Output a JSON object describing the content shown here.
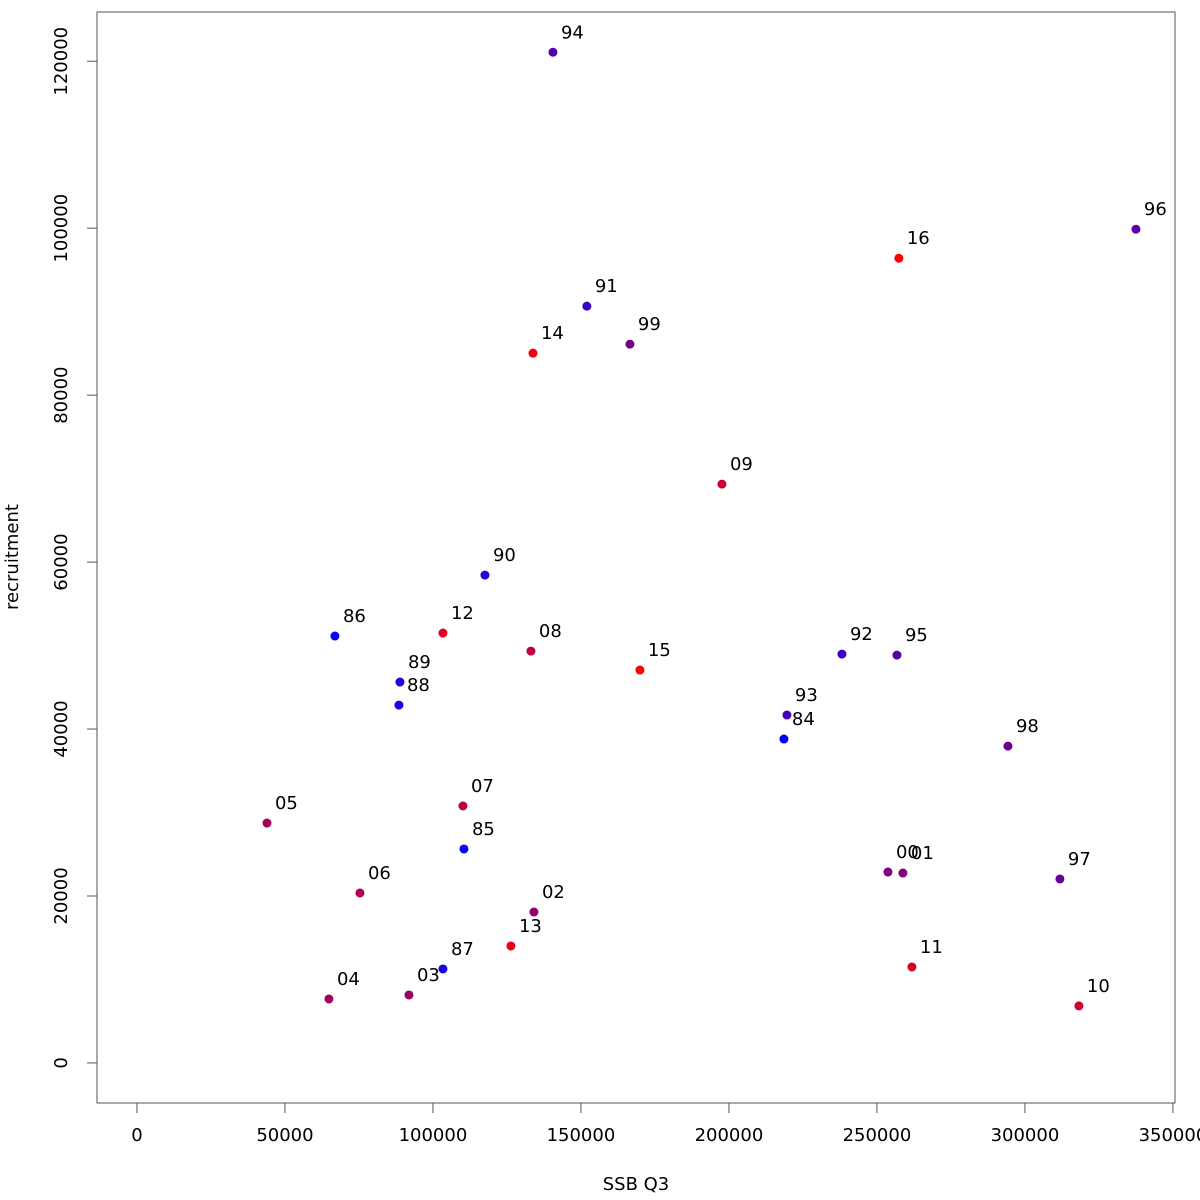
{
  "chart_data": {
    "type": "scatter",
    "xlabel": "SSB Q3",
    "ylabel": "recruitment",
    "xlim": [
      -13500,
      350700
    ],
    "ylim": [
      -4800,
      125900
    ],
    "xticks": [
      0,
      50000,
      100000,
      150000,
      200000,
      250000,
      300000,
      350000
    ],
    "yticks": [
      0,
      20000,
      40000,
      60000,
      80000,
      100000,
      120000
    ],
    "labels": [
      "94",
      "96",
      "16",
      "91",
      "14",
      "99",
      "09",
      "90",
      "86",
      "12",
      "08",
      "15",
      "92",
      "95",
      "89",
      "88",
      "93",
      "84",
      "98",
      "05",
      "07",
      "85",
      "00",
      "01",
      "97",
      "06",
      "02",
      "13",
      "87",
      "11",
      "04",
      "03",
      "10"
    ],
    "x": [
      140540,
      337500,
      257400,
      152000,
      133800,
      166550,
      197640,
      117570,
      66890,
      103380,
      133100,
      169930,
      238180,
      256760,
      88850,
      88510,
      219590,
      218580,
      294260,
      43920,
      110140,
      110470,
      253720,
      258780,
      311820,
      75340,
      134120,
      126350,
      103380,
      261820,
      64860,
      91890,
      318240
    ],
    "y": [
      121078,
      99880,
      96400,
      90660,
      85030,
      86110,
      69340,
      58440,
      51140,
      51500,
      49340,
      47070,
      48980,
      48860,
      45630,
      42870,
      41680,
      38800,
      37960,
      28740,
      30780,
      25630,
      22870,
      22750,
      22040,
      20360,
      18080,
      14010,
      11260,
      11500,
      7660,
      8140,
      6830
    ],
    "colors": [
      "#5000af",
      "#60009f",
      "#ff0000",
      "#3800c7",
      "#f0000f",
      "#780087",
      "#c80037",
      "#3000cf",
      "#1000ef",
      "#e0001f",
      "#c0003f",
      "#f80007",
      "#4000bf",
      "#5800a7",
      "#2800d7",
      "#2000df",
      "#4800b7",
      "#0000ff",
      "#70008f",
      "#a80057",
      "#b80047",
      "#0800f7",
      "#80007f",
      "#880077",
      "#680097",
      "#b0004f",
      "#90006f",
      "#e80017",
      "#1800e7",
      "#d80027",
      "#a0005f",
      "#980067",
      "#d0002f"
    ]
  }
}
